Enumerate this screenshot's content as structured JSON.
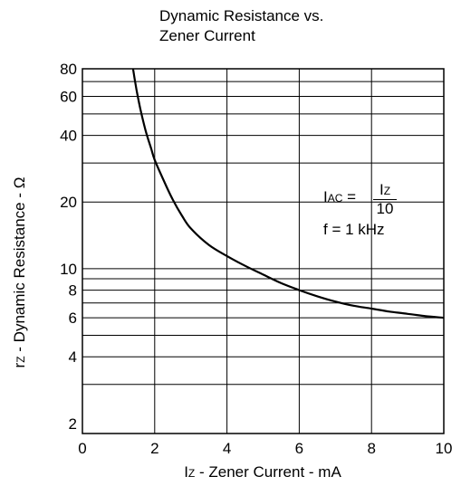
{
  "chart_data": {
    "type": "line",
    "title_lines": [
      "Dynamic Resistance vs.",
      "Zener Current"
    ],
    "xlabel": {
      "main": "I",
      "sub": "Z",
      "rest": " - Zener Current - mA"
    },
    "ylabel": {
      "main": "r",
      "sub": "Z",
      "rest": " - Dynamic Resistance - Ω"
    },
    "xlim": [
      0,
      10
    ],
    "ylim": [
      1.8,
      80
    ],
    "y_scale": "log",
    "grid": true,
    "x_ticks": [
      0,
      2,
      4,
      6,
      8,
      10
    ],
    "x_tick_labels": [
      "0",
      "2",
      "4",
      "6",
      "8",
      "10"
    ],
    "y_ticks": [
      2,
      4,
      6,
      8,
      10,
      20,
      40,
      60,
      80
    ],
    "y_tick_labels": [
      "2",
      "4",
      "6",
      "8",
      "10",
      "20",
      "40",
      "60",
      "80"
    ],
    "y_gridlines": [
      3,
      4,
      5,
      6,
      7,
      8,
      9,
      10,
      20,
      30,
      40,
      50,
      60,
      70,
      80
    ],
    "series": [
      {
        "x": [
          1.4,
          1.5,
          1.6,
          1.75,
          1.9,
          2.0,
          2.25,
          2.5,
          2.75,
          3.0,
          3.5,
          4.0,
          4.5,
          5.0,
          5.5,
          6.0,
          6.5,
          7.0,
          7.5,
          8.0,
          8.5,
          9.0,
          9.5,
          10.0
        ],
        "y": [
          80,
          64,
          53,
          42,
          35,
          31,
          25,
          20.5,
          17.4,
          15.2,
          12.8,
          11.4,
          10.3,
          9.4,
          8.6,
          8.0,
          7.5,
          7.1,
          6.8,
          6.6,
          6.4,
          6.25,
          6.1,
          6.0
        ]
      }
    ],
    "annotation": {
      "lhs_main": "I",
      "lhs_sub": "AC",
      "eq": " =",
      "frac_num_main": "I",
      "frac_num_sub": "Z",
      "frac_den": "10",
      "line2": "f = 1 kHz"
    }
  }
}
